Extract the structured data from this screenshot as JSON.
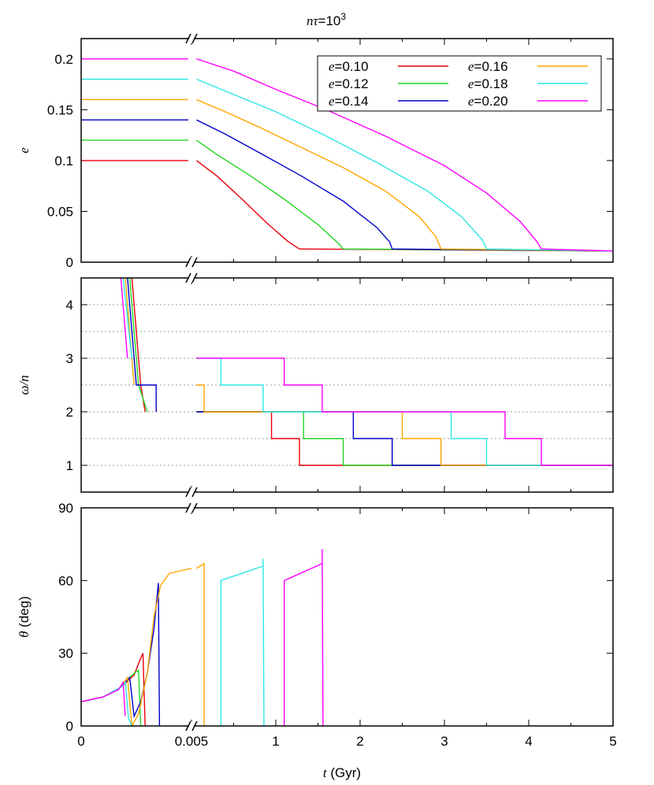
{
  "title": {
    "base": "nτ",
    "eq": "=10",
    "sup": "3"
  },
  "xaxis": {
    "label_var": "t",
    "label_unit": " (Gyr)",
    "break_left": {
      "range": [
        0,
        0.005
      ],
      "ticks": [
        0,
        0.005
      ],
      "tick_labels": [
        "0",
        "0.005"
      ]
    },
    "break_right": {
      "range": [
        0,
        5
      ],
      "ticks": [
        1,
        2,
        3,
        4,
        5
      ],
      "tick_labels": [
        "1",
        "2",
        "3",
        "4",
        "5"
      ]
    }
  },
  "legend_title_var": "e",
  "chart_data": [
    {
      "type": "line",
      "panel": "top",
      "ylabel": "e",
      "ylim": [
        0,
        0.22
      ],
      "yticks": [
        0,
        0.05,
        0.1,
        0.15,
        0.2
      ],
      "ytick_labels": [
        "0",
        "0.05",
        "0.1",
        "0.15",
        "0.2"
      ],
      "grid": false,
      "legend_position": "top-right",
      "series": [
        {
          "name": "=0.10",
          "color": "#e8000b",
          "initial": 0.1,
          "points": [
            [
              0.06,
              0.1
            ],
            [
              0.3,
              0.085
            ],
            [
              0.6,
              0.062
            ],
            [
              0.9,
              0.038
            ],
            [
              1.15,
              0.02
            ],
            [
              1.28,
              0.013
            ],
            [
              5,
              0.011
            ]
          ]
        },
        {
          "name": "=0.12",
          "color": "#22d622",
          "initial": 0.12,
          "points": [
            [
              0.06,
              0.12
            ],
            [
              0.3,
              0.106
            ],
            [
              0.7,
              0.085
            ],
            [
              1.1,
              0.062
            ],
            [
              1.5,
              0.037
            ],
            [
              1.75,
              0.018
            ],
            [
              1.8,
              0.013
            ],
            [
              5,
              0.011
            ]
          ]
        },
        {
          "name": "=0.14",
          "color": "#0000c8",
          "initial": 0.14,
          "points": [
            [
              0.06,
              0.14
            ],
            [
              0.4,
              0.126
            ],
            [
              0.8,
              0.108
            ],
            [
              1.3,
              0.085
            ],
            [
              1.8,
              0.06
            ],
            [
              2.2,
              0.034
            ],
            [
              2.35,
              0.02
            ],
            [
              2.38,
              0.013
            ],
            [
              5,
              0.011
            ]
          ]
        },
        {
          "name": "=0.16",
          "color": "#ffa500",
          "initial": 0.16,
          "points": [
            [
              0.06,
              0.16
            ],
            [
              0.4,
              0.148
            ],
            [
              0.8,
              0.133
            ],
            [
              1.3,
              0.113
            ],
            [
              1.8,
              0.093
            ],
            [
              2.3,
              0.07
            ],
            [
              2.7,
              0.045
            ],
            [
              2.9,
              0.025
            ],
            [
              2.96,
              0.013
            ],
            [
              5,
              0.011
            ]
          ]
        },
        {
          "name": "=0.18",
          "color": "#2ee6e6",
          "initial": 0.18,
          "points": [
            [
              0.06,
              0.18
            ],
            [
              0.5,
              0.165
            ],
            [
              1.0,
              0.148
            ],
            [
              1.6,
              0.124
            ],
            [
              2.2,
              0.098
            ],
            [
              2.8,
              0.07
            ],
            [
              3.2,
              0.045
            ],
            [
              3.45,
              0.022
            ],
            [
              3.5,
              0.013
            ],
            [
              5,
              0.011
            ]
          ]
        },
        {
          "name": "=0.20",
          "color": "#ff00ff",
          "initial": 0.2,
          "points": [
            [
              0.06,
              0.2
            ],
            [
              0.5,
              0.188
            ],
            [
              1.0,
              0.17
            ],
            [
              1.6,
              0.15
            ],
            [
              2.3,
              0.124
            ],
            [
              3.0,
              0.095
            ],
            [
              3.5,
              0.068
            ],
            [
              3.9,
              0.04
            ],
            [
              4.1,
              0.02
            ],
            [
              4.15,
              0.013
            ],
            [
              5,
              0.011
            ]
          ]
        }
      ]
    },
    {
      "type": "line",
      "panel": "middle",
      "ylabel": "ω/n",
      "ylim": [
        0.5,
        4.5
      ],
      "yticks": [
        1,
        2,
        3,
        4
      ],
      "ytick_labels": [
        "1",
        "2",
        "3",
        "4"
      ],
      "grid": "dotted horizontal every 0.5",
      "series": [
        {
          "name": "e=0.10",
          "color": "#e8000b",
          "left": [
            [
              0.0023,
              4.5
            ],
            [
              0.0027,
              2.5
            ],
            [
              0.0029,
              2
            ]
          ],
          "right": [
            [
              0.06,
              2
            ],
            [
              0.95,
              2
            ],
            [
              0.95,
              1.5
            ],
            [
              1.28,
              1.5
            ],
            [
              1.28,
              1
            ],
            [
              5,
              1
            ]
          ]
        },
        {
          "name": "e=0.12",
          "color": "#22d622",
          "left": [
            [
              0.0022,
              4.5
            ],
            [
              0.0026,
              2.5
            ],
            [
              0.003,
              2
            ]
          ],
          "right": [
            [
              0.06,
              2
            ],
            [
              1.33,
              2
            ],
            [
              1.33,
              1.5
            ],
            [
              1.8,
              1.5
            ],
            [
              1.8,
              1
            ],
            [
              5,
              1
            ]
          ]
        },
        {
          "name": "e=0.14",
          "color": "#0000c8",
          "left": [
            [
              0.0021,
              4.5
            ],
            [
              0.0025,
              2.5
            ],
            [
              0.0034,
              2.5
            ],
            [
              0.0034,
              2
            ]
          ],
          "right": [
            [
              0.06,
              2
            ],
            [
              1.92,
              2
            ],
            [
              1.92,
              1.5
            ],
            [
              2.38,
              1.5
            ],
            [
              2.38,
              1
            ],
            [
              5,
              1
            ]
          ]
        },
        {
          "name": "e=0.16",
          "color": "#ffa500",
          "left": [
            [
              0.002,
              4.5
            ],
            [
              0.0024,
              2.5
            ]
          ],
          "right": [
            [
              0.06,
              2.5
            ],
            [
              0.15,
              2.5
            ],
            [
              0.15,
              2
            ],
            [
              2.5,
              2
            ],
            [
              2.5,
              1.5
            ],
            [
              2.96,
              1.5
            ],
            [
              2.96,
              1
            ],
            [
              5,
              1
            ]
          ]
        },
        {
          "name": "e=0.18",
          "color": "#2ee6e6",
          "left": [
            [
              0.0019,
              4.5
            ],
            [
              0.0023,
              3
            ]
          ],
          "right": [
            [
              0.06,
              3
            ],
            [
              0.35,
              3
            ],
            [
              0.35,
              2.5
            ],
            [
              0.85,
              2.5
            ],
            [
              0.85,
              2
            ],
            [
              3.08,
              2
            ],
            [
              3.08,
              1.5
            ],
            [
              3.5,
              1.5
            ],
            [
              3.5,
              1
            ],
            [
              5,
              1
            ]
          ]
        },
        {
          "name": "e=0.20",
          "color": "#ff00ff",
          "left": [
            [
              0.0018,
              4.5
            ],
            [
              0.0021,
              3
            ]
          ],
          "right": [
            [
              0.06,
              3
            ],
            [
              1.1,
              3
            ],
            [
              1.1,
              2.5
            ],
            [
              1.55,
              2.5
            ],
            [
              1.55,
              2
            ],
            [
              3.72,
              2
            ],
            [
              3.72,
              1.5
            ],
            [
              4.15,
              1.5
            ],
            [
              4.15,
              1
            ],
            [
              5,
              1
            ]
          ]
        }
      ]
    },
    {
      "type": "line",
      "panel": "bottom",
      "ylabel": "θ (deg)",
      "ylim": [
        0,
        90
      ],
      "yticks": [
        0,
        30,
        60,
        90
      ],
      "ytick_labels": [
        "0",
        "30",
        "60",
        "90"
      ],
      "grid": false,
      "series": [
        {
          "name": "e=0.10",
          "color": "#e8000b",
          "left": [
            [
              0,
              10
            ],
            [
              0.001,
              12
            ],
            [
              0.0018,
              16
            ],
            [
              0.0024,
              21
            ],
            [
              0.0027,
              28
            ],
            [
              0.0028,
              30
            ],
            [
              0.0029,
              0
            ]
          ],
          "right": []
        },
        {
          "name": "e=0.12",
          "color": "#22d622",
          "left": [
            [
              0,
              10
            ],
            [
              0.001,
              12
            ],
            [
              0.0018,
              16
            ],
            [
              0.0023,
              21
            ],
            [
              0.0026,
              23
            ],
            [
              0.0027,
              0
            ]
          ],
          "right": []
        },
        {
          "name": "e=0.14",
          "color": "#0000c8",
          "left": [
            [
              0,
              10
            ],
            [
              0.001,
              12
            ],
            [
              0.0018,
              16
            ],
            [
              0.0022,
              20
            ],
            [
              0.0024,
              4
            ],
            [
              0.0027,
              10
            ],
            [
              0.003,
              22
            ],
            [
              0.0033,
              40
            ],
            [
              0.0035,
              59
            ],
            [
              0.00355,
              0
            ]
          ],
          "right": []
        },
        {
          "name": "e=0.16",
          "color": "#ffa500",
          "left": [
            [
              0,
              10
            ],
            [
              0.001,
              12
            ],
            [
              0.0018,
              16
            ],
            [
              0.0021,
              20
            ],
            [
              0.0023,
              0
            ],
            [
              0.0026,
              5
            ],
            [
              0.003,
              22
            ],
            [
              0.0033,
              45
            ],
            [
              0.0036,
              58
            ],
            [
              0.004,
              63
            ],
            [
              0.0045,
              64
            ],
            [
              0.005,
              65
            ]
          ],
          "right": [
            [
              0.06,
              65
            ],
            [
              0.15,
              67
            ],
            [
              0.15,
              0
            ]
          ]
        },
        {
          "name": "e=0.18",
          "color": "#2ee6e6",
          "left": [
            [
              0,
              10
            ],
            [
              0.001,
              12
            ],
            [
              0.0018,
              16
            ],
            [
              0.002,
              18
            ],
            [
              0.00215,
              3
            ],
            [
              0.0023,
              0
            ]
          ],
          "right": [
            [
              0.35,
              0
            ],
            [
              0.35,
              60
            ],
            [
              0.85,
              66
            ],
            [
              0.85,
              69
            ],
            [
              0.86,
              0
            ]
          ]
        },
        {
          "name": "e=0.20",
          "color": "#ff00ff",
          "left": [
            [
              0,
              10
            ],
            [
              0.001,
              12
            ],
            [
              0.0017,
              15
            ],
            [
              0.0019,
              18
            ],
            [
              0.002,
              4
            ]
          ],
          "right": [
            [
              1.1,
              0
            ],
            [
              1.1,
              60
            ],
            [
              1.55,
              67
            ],
            [
              1.55,
              73
            ],
            [
              1.56,
              0
            ]
          ]
        }
      ]
    }
  ]
}
